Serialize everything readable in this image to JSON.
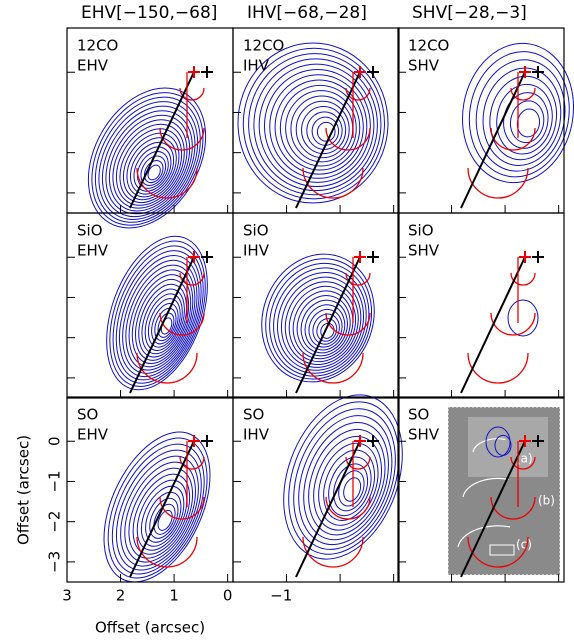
{
  "columns": [
    "EHV[−150,−68]",
    "IHV[−68,−28]",
    "SHV[−28,−3]"
  ],
  "panels": [
    {
      "line": "12CO",
      "velocity": "EHV"
    },
    {
      "line": "12CO",
      "velocity": "IHV"
    },
    {
      "line": "12CO",
      "velocity": "SHV"
    },
    {
      "line": "SiO",
      "velocity": "EHV"
    },
    {
      "line": "SiO",
      "velocity": "IHV"
    },
    {
      "line": "SiO",
      "velocity": "SHV"
    },
    {
      "line": "SO",
      "velocity": "EHV"
    },
    {
      "line": "SO",
      "velocity": "IHV"
    },
    {
      "line": "SO",
      "velocity": "SHV"
    }
  ],
  "inset_labels": [
    "(a)",
    "(b)",
    "(c)"
  ],
  "chart_data": {
    "type": "contour",
    "xlabel": "Offset (arcsec)",
    "ylabel": "Offset (arcsec)",
    "xlim": [
      3,
      -0.1
    ],
    "ylim": [
      -3.5,
      1.1
    ],
    "xticks": [
      3,
      2,
      1,
      0,
      {
        "value": -1,
        "label": "−1"
      }
    ],
    "yticks": [
      0,
      {
        "value": -1,
        "label": "−1"
      },
      {
        "value": -2,
        "label": "−2"
      },
      {
        "value": -3,
        "label": "−3"
      }
    ]
  }
}
